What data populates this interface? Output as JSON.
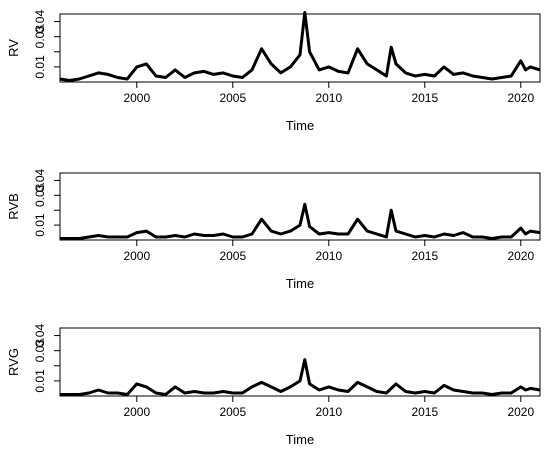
{
  "chart_data": [
    {
      "type": "line",
      "ylabel": "RV",
      "xlabel": "Time",
      "xlim": [
        1996,
        2021
      ],
      "ylim": [
        0,
        0.045
      ],
      "x_ticks": [
        2000,
        2005,
        2010,
        2015,
        2020
      ],
      "y_ticks": [
        0.01,
        0.02,
        0.03,
        0.04
      ],
      "y_tick_labels": [
        "0.01",
        "",
        "0.03",
        "0.04"
      ],
      "grid": false,
      "series": [
        {
          "x": [
            1996.0,
            1996.5,
            1997.0,
            1997.5,
            1998.0,
            1998.5,
            1999.0,
            1999.5,
            2000.0,
            2000.5,
            2001.0,
            2001.5,
            2002.0,
            2002.5,
            2003.0,
            2003.5,
            2004.0,
            2004.5,
            2005.0,
            2005.5,
            2006.0,
            2006.5,
            2007.0,
            2007.5,
            2008.0,
            2008.5,
            2008.75,
            2009.0,
            2009.5,
            2010.0,
            2010.5,
            2011.0,
            2011.5,
            2012.0,
            2012.5,
            2013.0,
            2013.25,
            2013.5,
            2014.0,
            2014.5,
            2015.0,
            2015.5,
            2016.0,
            2016.5,
            2017.0,
            2017.5,
            2018.0,
            2018.5,
            2019.0,
            2019.5,
            2020.0,
            2020.25,
            2020.5,
            2021.0
          ],
          "values": [
            0.002,
            0.001,
            0.002,
            0.004,
            0.006,
            0.005,
            0.003,
            0.002,
            0.01,
            0.012,
            0.004,
            0.003,
            0.008,
            0.003,
            0.006,
            0.007,
            0.005,
            0.006,
            0.004,
            0.003,
            0.008,
            0.022,
            0.012,
            0.006,
            0.01,
            0.018,
            0.046,
            0.02,
            0.008,
            0.01,
            0.007,
            0.006,
            0.022,
            0.012,
            0.008,
            0.004,
            0.023,
            0.012,
            0.006,
            0.004,
            0.005,
            0.004,
            0.01,
            0.005,
            0.006,
            0.004,
            0.003,
            0.002,
            0.003,
            0.004,
            0.014,
            0.008,
            0.01,
            0.008
          ]
        }
      ]
    },
    {
      "type": "line",
      "ylabel": "RVB",
      "xlabel": "Time",
      "xlim": [
        1996,
        2021
      ],
      "ylim": [
        0,
        0.045
      ],
      "x_ticks": [
        2000,
        2005,
        2010,
        2015,
        2020
      ],
      "y_ticks": [
        0.01,
        0.02,
        0.03,
        0.04
      ],
      "y_tick_labels": [
        "0.01",
        "",
        "0.03",
        "0.04"
      ],
      "grid": false,
      "series": [
        {
          "x": [
            1996.0,
            1996.5,
            1997.0,
            1997.5,
            1998.0,
            1998.5,
            1999.0,
            1999.5,
            2000.0,
            2000.5,
            2001.0,
            2001.5,
            2002.0,
            2002.5,
            2003.0,
            2003.5,
            2004.0,
            2004.5,
            2005.0,
            2005.5,
            2006.0,
            2006.5,
            2007.0,
            2007.5,
            2008.0,
            2008.5,
            2008.75,
            2009.0,
            2009.5,
            2010.0,
            2010.5,
            2011.0,
            2011.5,
            2012.0,
            2012.5,
            2013.0,
            2013.25,
            2013.5,
            2014.0,
            2014.5,
            2015.0,
            2015.5,
            2016.0,
            2016.5,
            2017.0,
            2017.5,
            2018.0,
            2018.5,
            2019.0,
            2019.5,
            2020.0,
            2020.25,
            2020.5,
            2021.0
          ],
          "values": [
            0.001,
            0.001,
            0.001,
            0.002,
            0.003,
            0.002,
            0.002,
            0.002,
            0.005,
            0.006,
            0.002,
            0.002,
            0.003,
            0.002,
            0.004,
            0.003,
            0.003,
            0.004,
            0.002,
            0.002,
            0.004,
            0.014,
            0.006,
            0.004,
            0.006,
            0.01,
            0.024,
            0.009,
            0.004,
            0.005,
            0.004,
            0.004,
            0.014,
            0.006,
            0.004,
            0.002,
            0.02,
            0.006,
            0.004,
            0.002,
            0.003,
            0.002,
            0.004,
            0.003,
            0.005,
            0.002,
            0.002,
            0.001,
            0.002,
            0.002,
            0.008,
            0.004,
            0.006,
            0.005
          ]
        }
      ]
    },
    {
      "type": "line",
      "ylabel": "RVG",
      "xlabel": "Time",
      "xlim": [
        1996,
        2021
      ],
      "ylim": [
        0,
        0.045
      ],
      "x_ticks": [
        2000,
        2005,
        2010,
        2015,
        2020
      ],
      "y_ticks": [
        0.01,
        0.02,
        0.03,
        0.04
      ],
      "y_tick_labels": [
        "0.01",
        "",
        "0.03",
        "0.04"
      ],
      "grid": false,
      "series": [
        {
          "x": [
            1996.0,
            1996.5,
            1997.0,
            1997.5,
            1998.0,
            1998.5,
            1999.0,
            1999.5,
            2000.0,
            2000.5,
            2001.0,
            2001.5,
            2002.0,
            2002.5,
            2003.0,
            2003.5,
            2004.0,
            2004.5,
            2005.0,
            2005.5,
            2006.0,
            2006.5,
            2007.0,
            2007.5,
            2008.0,
            2008.5,
            2008.75,
            2009.0,
            2009.5,
            2010.0,
            2010.5,
            2011.0,
            2011.5,
            2012.0,
            2012.5,
            2013.0,
            2013.25,
            2013.5,
            2014.0,
            2014.5,
            2015.0,
            2015.5,
            2016.0,
            2016.5,
            2017.0,
            2017.5,
            2018.0,
            2018.5,
            2019.0,
            2019.5,
            2020.0,
            2020.25,
            2020.5,
            2021.0
          ],
          "values": [
            0.001,
            0.001,
            0.001,
            0.002,
            0.004,
            0.002,
            0.002,
            0.001,
            0.008,
            0.006,
            0.002,
            0.001,
            0.006,
            0.002,
            0.003,
            0.002,
            0.002,
            0.003,
            0.002,
            0.002,
            0.006,
            0.009,
            0.006,
            0.003,
            0.006,
            0.01,
            0.024,
            0.008,
            0.004,
            0.006,
            0.004,
            0.003,
            0.009,
            0.006,
            0.003,
            0.002,
            0.005,
            0.008,
            0.003,
            0.002,
            0.003,
            0.002,
            0.007,
            0.004,
            0.003,
            0.002,
            0.002,
            0.001,
            0.002,
            0.002,
            0.006,
            0.004,
            0.005,
            0.004
          ]
        }
      ]
    }
  ]
}
